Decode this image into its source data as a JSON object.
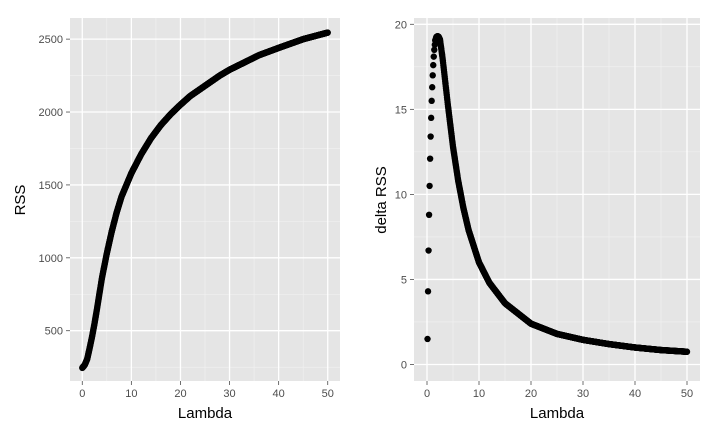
{
  "chart_data": [
    {
      "id": "rss",
      "type": "scatter",
      "title": "",
      "xlabel": "Lambda",
      "ylabel": "RSS",
      "xlim": [
        -2.5,
        52.5
      ],
      "ylim": [
        155,
        2645
      ],
      "xticks": [
        0,
        10,
        20,
        30,
        40,
        50
      ],
      "yticks": [
        500,
        1000,
        1500,
        2000,
        2500
      ],
      "grid": true,
      "point_color": "#000000",
      "x": [
        0,
        0.5,
        1,
        1.5,
        2,
        2.5,
        3,
        4,
        5,
        6,
        7,
        8,
        10,
        12,
        14,
        16,
        18,
        20,
        22,
        25,
        28,
        30,
        33,
        36,
        40,
        45,
        50
      ],
      "y": [
        245,
        265,
        305,
        380,
        460,
        550,
        650,
        860,
        1030,
        1180,
        1310,
        1420,
        1580,
        1710,
        1820,
        1910,
        1985,
        2050,
        2110,
        2180,
        2250,
        2290,
        2340,
        2390,
        2440,
        2500,
        2545
      ]
    },
    {
      "id": "delta-rss",
      "type": "scatter",
      "title": "",
      "xlabel": "Lambda",
      "ylabel": "delta RSS",
      "xlim": [
        -2.5,
        52.5
      ],
      "ylim": [
        -0.97,
        20.37
      ],
      "xticks": [
        0,
        10,
        20,
        30,
        40,
        50
      ],
      "yticks": [
        0,
        5,
        10,
        15,
        20
      ],
      "grid": true,
      "point_color": "#000000",
      "x": [
        0.1,
        0.2,
        0.3,
        0.4,
        0.5,
        0.6,
        0.7,
        0.8,
        0.9,
        1.0,
        1.1,
        1.2,
        1.3,
        1.4,
        1.5,
        1.6,
        1.8,
        2.0,
        2.2,
        2.5,
        3,
        4,
        5,
        6,
        7,
        8,
        10,
        12,
        15,
        20,
        25,
        30,
        35,
        40,
        45,
        50
      ],
      "y": [
        1.5,
        4.3,
        6.7,
        8.8,
        10.5,
        12.1,
        13.4,
        14.5,
        15.5,
        16.3,
        17.0,
        17.6,
        18.1,
        18.5,
        18.8,
        19.05,
        19.25,
        19.3,
        19.28,
        19.1,
        18.0,
        15.3,
        12.8,
        10.8,
        9.2,
        7.9,
        6.0,
        4.8,
        3.6,
        2.4,
        1.8,
        1.45,
        1.2,
        1.0,
        0.85,
        0.75
      ]
    }
  ]
}
